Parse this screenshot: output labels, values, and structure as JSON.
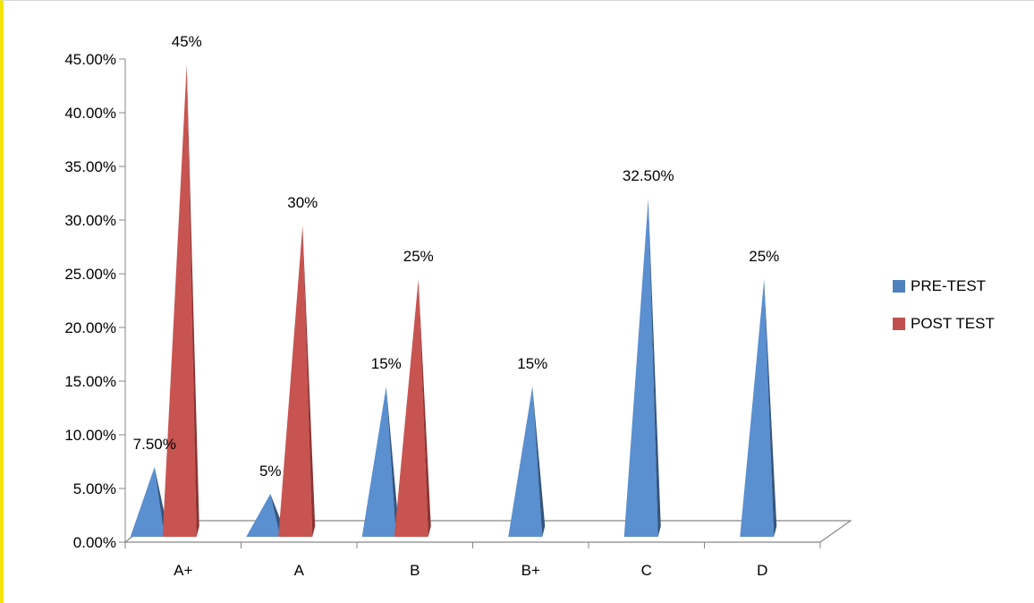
{
  "chart_data": {
    "type": "bar",
    "categories": [
      "A+",
      "A",
      "B",
      "B+",
      "C",
      "D"
    ],
    "ylim": [
      0,
      45
    ],
    "yticks": [
      "0.00%",
      "5.00%",
      "10.00%",
      "15.00%",
      "20.00%",
      "25.00%",
      "30.00%",
      "35.00%",
      "40.00%",
      "45.00%"
    ],
    "legend_position": "right",
    "series": [
      {
        "name": "PRE-TEST",
        "color": "#4f81bd",
        "values": [
          7.5,
          5,
          15,
          15,
          32.5,
          25
        ],
        "labels": [
          "7.50%",
          "5%",
          "15%",
          "15%",
          "32.50%",
          "25%"
        ]
      },
      {
        "name": "POST TEST",
        "color": "#c0504d",
        "values": [
          45,
          30,
          25,
          null,
          null,
          null
        ],
        "labels": [
          "45%",
          "30%",
          "25%",
          "",
          "",
          ""
        ]
      }
    ]
  }
}
